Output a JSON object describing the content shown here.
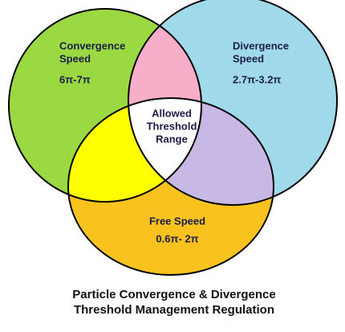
{
  "diagram": {
    "sets": [
      {
        "label": [
          "Convergence",
          "Speed"
        ],
        "range": "6π-7π"
      },
      {
        "label": [
          "Divergence",
          "Speed"
        ],
        "range": "2.7π-3.2π"
      },
      {
        "label": [
          "Free Speed"
        ],
        "range": "0.6π- 2π"
      }
    ],
    "center": {
      "label": [
        "Allowed",
        "Threshold",
        "Range"
      ]
    },
    "title": [
      "Particle Convergence & Divergence",
      "Threshold Management Regulation"
    ]
  }
}
